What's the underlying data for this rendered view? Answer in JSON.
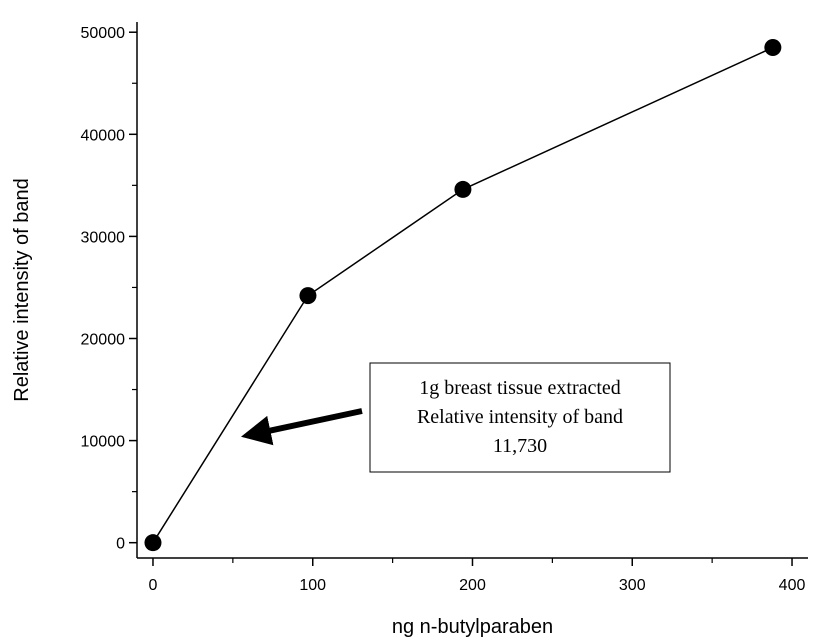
{
  "chart_data": {
    "type": "line",
    "title": "",
    "xlabel": "ng n-butylparaben",
    "ylabel": "Relative intensity of band",
    "xlim": [
      -10,
      410
    ],
    "ylim": [
      -1500,
      51000
    ],
    "x_ticks": [
      0,
      100,
      200,
      300,
      400
    ],
    "x_minor_ticks": [
      50,
      150,
      250,
      350
    ],
    "y_ticks": [
      0,
      10000,
      20000,
      30000,
      40000,
      50000
    ],
    "y_minor_ticks": [
      5000,
      15000,
      25000,
      35000,
      45000
    ],
    "grid": false,
    "series": [
      {
        "x": [
          0,
          97,
          194,
          388
        ],
        "y": [
          0,
          24200,
          34600,
          48500
        ]
      }
    ],
    "annotation": {
      "lines": [
        "1g breast tissue extracted",
        "Relative intensity of band",
        "11,730"
      ],
      "arrow_target": {
        "x": 50,
        "y": 10200
      }
    }
  }
}
